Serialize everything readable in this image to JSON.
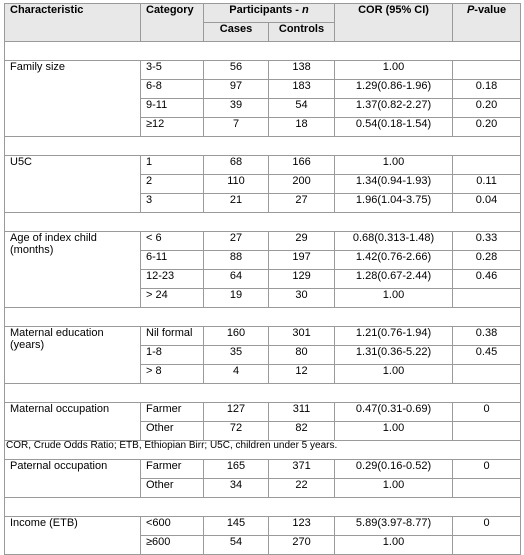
{
  "header": {
    "characteristic": "Characteristic",
    "category": "Category",
    "participants": "Participants - ",
    "participants_n": "n",
    "cases": "Cases",
    "controls": "Controls",
    "cor": "COR (95% CI)",
    "p": "P",
    "p_suffix": "-value"
  },
  "groups": [
    {
      "label": "Family size",
      "rows": [
        {
          "cat": "3-5",
          "cases": "56",
          "controls": "138",
          "cor": "1.00",
          "p": ""
        },
        {
          "cat": "6-8",
          "cases": "97",
          "controls": "183",
          "cor": "1.29(0.86-1.96)",
          "p": "0.18"
        },
        {
          "cat": "9-11",
          "cases": "39",
          "controls": "54",
          "cor": "1.37(0.82-2.27)",
          "p": "0.20"
        },
        {
          "cat": "≥12",
          "cases": "7",
          "controls": "18",
          "cor": "0.54(0.18-1.54)",
          "p": "0.20"
        }
      ]
    },
    {
      "label": "U5C",
      "rows": [
        {
          "cat": "1",
          "cases": "68",
          "controls": "166",
          "cor": "1.00",
          "p": ""
        },
        {
          "cat": "2",
          "cases": "110",
          "controls": "200",
          "cor": "1.34(0.94-1.93)",
          "p": "0.11"
        },
        {
          "cat": "3",
          "cases": "21",
          "controls": "27",
          "cor": "1.96(1.04-3.75)",
          "p": "0.04"
        }
      ]
    },
    {
      "label": "Age of index child (months)",
      "rows": [
        {
          "cat": "< 6",
          "cases": "27",
          "controls": "29",
          "cor": "0.68(0.313-1.48)",
          "p": "0.33"
        },
        {
          "cat": "6-11",
          "cases": "88",
          "controls": "197",
          "cor": "1.42(0.76-2.66)",
          "p": "0.28"
        },
        {
          "cat": "12-23",
          "cases": "64",
          "controls": "129",
          "cor": "1.28(0.67-2.44)",
          "p": "0.46"
        },
        {
          "cat": "> 24",
          "cases": "19",
          "controls": "30",
          "cor": "1.00",
          "p": ""
        }
      ]
    },
    {
      "label": "Maternal education (years)",
      "rows": [
        {
          "cat": "Nil formal",
          "cases": "160",
          "controls": "301",
          "cor": "1.21(0.76-1.94)",
          "p": "0.38"
        },
        {
          "cat": "1-8",
          "cases": "35",
          "controls": "80",
          "cor": "1.31(0.36-5.22)",
          "p": "0.45"
        },
        {
          "cat": "> 8",
          "cases": "4",
          "controls": "12",
          "cor": "1.00",
          "p": ""
        }
      ]
    },
    {
      "label": "Maternal occupation",
      "rows": [
        {
          "cat": "Farmer",
          "cases": "127",
          "controls": "311",
          "cor": "0.47(0.31-0.69)",
          "p": "0"
        },
        {
          "cat": "Other",
          "cases": "72",
          "controls": "82",
          "cor": "1.00",
          "p": ""
        }
      ]
    },
    {
      "label": "Paternal occupation",
      "rows": [
        {
          "cat": "Farmer",
          "cases": "165",
          "controls": "371",
          "cor": "0.29(0.16-0.52)",
          "p": "0"
        },
        {
          "cat": "Other",
          "cases": "34",
          "controls": "22",
          "cor": "1.00",
          "p": ""
        }
      ]
    },
    {
      "label": "Income (ETB)",
      "rows": [
        {
          "cat": "<600",
          "cases": "145",
          "controls": "123",
          "cor": "5.89(3.97-8.77)",
          "p": "0"
        },
        {
          "cat": "≥600",
          "cases": "54",
          "controls": "270",
          "cor": "1.00",
          "p": ""
        }
      ]
    }
  ],
  "footnote": "COR, Crude Odds Ratio; ETB, Ethiopian Birr; U5C, children under 5 years."
}
